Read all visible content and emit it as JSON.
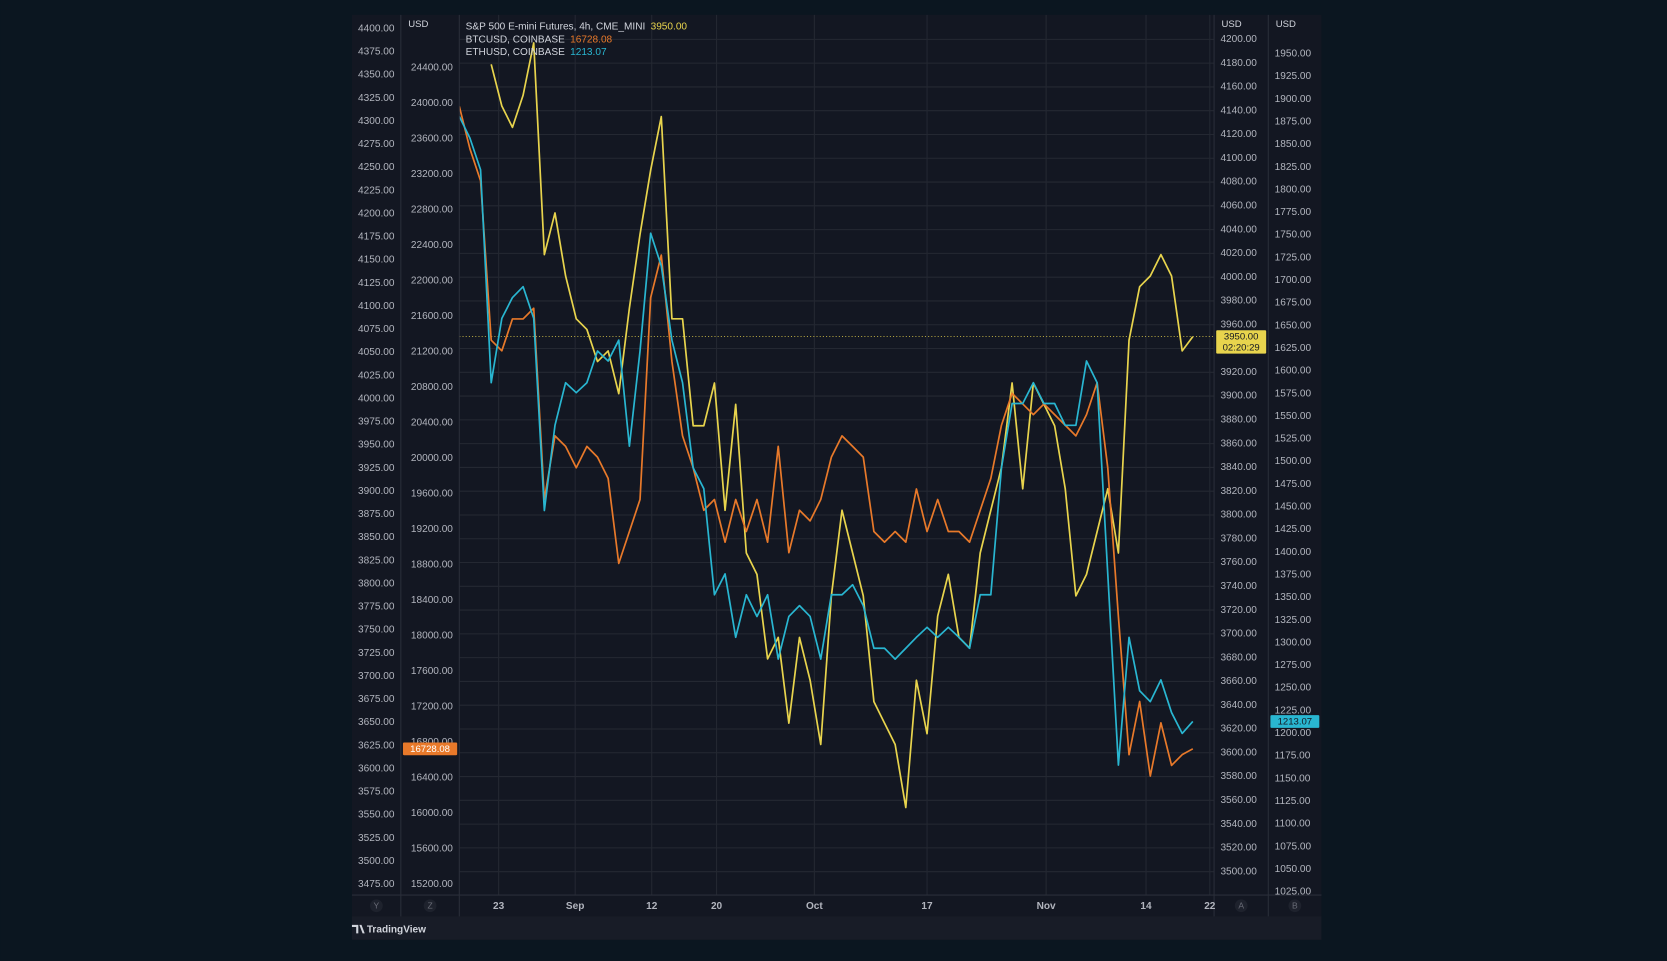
{
  "chart_data": {
    "type": "line",
    "source": "TradingView",
    "xlim": [
      0,
      71
    ],
    "xticks": [
      {
        "value": 3.7,
        "label": "23"
      },
      {
        "value": 10.9,
        "label": "Sep"
      },
      {
        "value": 18.1,
        "label": "12"
      },
      {
        "value": 24.2,
        "label": "20"
      },
      {
        "value": 33.4,
        "label": "Oct"
      },
      {
        "value": 44,
        "label": "17"
      },
      {
        "value": 55.2,
        "label": "Nov"
      },
      {
        "value": 64.6,
        "label": "14"
      },
      {
        "value": 70.6,
        "label": "22"
      }
    ],
    "grid": true,
    "axes": [
      {
        "id": "Y",
        "ylim": [
          3463.5,
          4415
        ],
        "ticks": [
          {
            "value": 4400,
            "label": "4400.00"
          },
          {
            "value": 4375,
            "label": "4375.00"
          },
          {
            "value": 4350,
            "label": "4350.00"
          },
          {
            "value": 4325,
            "label": "4325.00"
          },
          {
            "value": 4300,
            "label": "4300.00"
          },
          {
            "value": 4275,
            "label": "4275.00"
          },
          {
            "value": 4250,
            "label": "4250.00"
          },
          {
            "value": 4225,
            "label": "4225.00"
          },
          {
            "value": 4200,
            "label": "4200.00"
          },
          {
            "value": 4175,
            "label": "4175.00"
          },
          {
            "value": 4150,
            "label": "4150.00"
          },
          {
            "value": 4125,
            "label": "4125.00"
          },
          {
            "value": 4100,
            "label": "4100.00"
          },
          {
            "value": 4075,
            "label": "4075.00"
          },
          {
            "value": 4050,
            "label": "4050.00"
          },
          {
            "value": 4025,
            "label": "4025.00"
          },
          {
            "value": 4000,
            "label": "4000.00"
          },
          {
            "value": 3975,
            "label": "3975.00"
          },
          {
            "value": 3950,
            "label": "3950.00"
          },
          {
            "value": 3925,
            "label": "3925.00"
          },
          {
            "value": 3900,
            "label": "3900.00"
          },
          {
            "value": 3875,
            "label": "3875.00"
          },
          {
            "value": 3850,
            "label": "3850.00"
          },
          {
            "value": 3825,
            "label": "3825.00"
          },
          {
            "value": 3800,
            "label": "3800.00"
          },
          {
            "value": 3775,
            "label": "3775.00"
          },
          {
            "value": 3750,
            "label": "3750.00"
          },
          {
            "value": 3725,
            "label": "3725.00"
          },
          {
            "value": 3700,
            "label": "3700.00"
          },
          {
            "value": 3675,
            "label": "3675.00"
          },
          {
            "value": 3650,
            "label": "3650.00"
          },
          {
            "value": 3625,
            "label": "3625.00"
          },
          {
            "value": 3600,
            "label": "3600.00"
          },
          {
            "value": 3575,
            "label": "3575.00"
          },
          {
            "value": 3550,
            "label": "3550.00"
          },
          {
            "value": 3525,
            "label": "3525.00"
          },
          {
            "value": 3500,
            "label": "3500.00"
          },
          {
            "value": 3475,
            "label": "3475.00"
          }
        ]
      },
      {
        "id": "Z",
        "unit": "USD",
        "ylim": [
          15080,
          24999
        ],
        "ticks": [
          {
            "value": 24400,
            "label": "24400.00"
          },
          {
            "value": 24000,
            "label": "24000.00"
          },
          {
            "value": 23600,
            "label": "23600.00"
          },
          {
            "value": 23200,
            "label": "23200.00"
          },
          {
            "value": 22800,
            "label": "22800.00"
          },
          {
            "value": 22400,
            "label": "22400.00"
          },
          {
            "value": 22000,
            "label": "22000.00"
          },
          {
            "value": 21600,
            "label": "21600.00"
          },
          {
            "value": 21200,
            "label": "21200.00"
          },
          {
            "value": 20800,
            "label": "20800.00"
          },
          {
            "value": 20400,
            "label": "20400.00"
          },
          {
            "value": 20000,
            "label": "20000.00"
          },
          {
            "value": 19600,
            "label": "19600.00"
          },
          {
            "value": 19200,
            "label": "19200.00"
          },
          {
            "value": 18800,
            "label": "18800.00"
          },
          {
            "value": 18400,
            "label": "18400.00"
          },
          {
            "value": 18000,
            "label": "18000.00"
          },
          {
            "value": 17600,
            "label": "17600.00"
          },
          {
            "value": 17200,
            "label": "17200.00"
          },
          {
            "value": 16800,
            "label": "16800.00"
          },
          {
            "value": 16400,
            "label": "16400.00"
          },
          {
            "value": 16000,
            "label": "16000.00"
          },
          {
            "value": 15600,
            "label": "15600.00"
          },
          {
            "value": 15200,
            "label": "15200.00"
          }
        ]
      },
      {
        "id": "A",
        "unit": "USD",
        "ylim": [
          3480.3,
          4220.6
        ],
        "ticks": [
          {
            "value": 4200,
            "label": "4200.00"
          },
          {
            "value": 4180,
            "label": "4180.00"
          },
          {
            "value": 4160,
            "label": "4160.00"
          },
          {
            "value": 4140,
            "label": "4140.00"
          },
          {
            "value": 4120,
            "label": "4120.00"
          },
          {
            "value": 4100,
            "label": "4100.00"
          },
          {
            "value": 4080,
            "label": "4080.00"
          },
          {
            "value": 4060,
            "label": "4060.00"
          },
          {
            "value": 4040,
            "label": "4040.00"
          },
          {
            "value": 4020,
            "label": "4020.00"
          },
          {
            "value": 4000,
            "label": "4000.00"
          },
          {
            "value": 3980,
            "label": "3980.00"
          },
          {
            "value": 3960,
            "label": "3960.00"
          },
          {
            "value": 3940,
            "label": "3940.00"
          },
          {
            "value": 3920,
            "label": "3920.00"
          },
          {
            "value": 3900,
            "label": "3900.00"
          },
          {
            "value": 3880,
            "label": "3880.00"
          },
          {
            "value": 3860,
            "label": "3860.00"
          },
          {
            "value": 3840,
            "label": "3840.00"
          },
          {
            "value": 3820,
            "label": "3820.00"
          },
          {
            "value": 3800,
            "label": "3800.00"
          },
          {
            "value": 3780,
            "label": "3780.00"
          },
          {
            "value": 3760,
            "label": "3760.00"
          },
          {
            "value": 3740,
            "label": "3740.00"
          },
          {
            "value": 3720,
            "label": "3720.00"
          },
          {
            "value": 3700,
            "label": "3700.00"
          },
          {
            "value": 3680,
            "label": "3680.00"
          },
          {
            "value": 3660,
            "label": "3660.00"
          },
          {
            "value": 3640,
            "label": "3640.00"
          },
          {
            "value": 3620,
            "label": "3620.00"
          },
          {
            "value": 3600,
            "label": "3600.00"
          },
          {
            "value": 3580,
            "label": "3580.00"
          },
          {
            "value": 3560,
            "label": "3560.00"
          },
          {
            "value": 3540,
            "label": "3540.00"
          },
          {
            "value": 3520,
            "label": "3520.00"
          },
          {
            "value": 3500,
            "label": "3500.00"
          }
        ]
      },
      {
        "id": "B",
        "unit": "USD",
        "ylim": [
          1021.5,
          1993
        ],
        "ticks": [
          {
            "value": 1950,
            "label": "1950.00"
          },
          {
            "value": 1925,
            "label": "1925.00"
          },
          {
            "value": 1900,
            "label": "1900.00"
          },
          {
            "value": 1875,
            "label": "1875.00"
          },
          {
            "value": 1850,
            "label": "1850.00"
          },
          {
            "value": 1825,
            "label": "1825.00"
          },
          {
            "value": 1800,
            "label": "1800.00"
          },
          {
            "value": 1775,
            "label": "1775.00"
          },
          {
            "value": 1750,
            "label": "1750.00"
          },
          {
            "value": 1725,
            "label": "1725.00"
          },
          {
            "value": 1700,
            "label": "1700.00"
          },
          {
            "value": 1675,
            "label": "1675.00"
          },
          {
            "value": 1650,
            "label": "1650.00"
          },
          {
            "value": 1625,
            "label": "1625.00"
          },
          {
            "value": 1600,
            "label": "1600.00"
          },
          {
            "value": 1575,
            "label": "1575.00"
          },
          {
            "value": 1550,
            "label": "1550.00"
          },
          {
            "value": 1525,
            "label": "1525.00"
          },
          {
            "value": 1500,
            "label": "1500.00"
          },
          {
            "value": 1475,
            "label": "1475.00"
          },
          {
            "value": 1450,
            "label": "1450.00"
          },
          {
            "value": 1425,
            "label": "1425.00"
          },
          {
            "value": 1400,
            "label": "1400.00"
          },
          {
            "value": 1375,
            "label": "1375.00"
          },
          {
            "value": 1350,
            "label": "1350.00"
          },
          {
            "value": 1325,
            "label": "1325.00"
          },
          {
            "value": 1300,
            "label": "1300.00"
          },
          {
            "value": 1275,
            "label": "1275.00"
          },
          {
            "value": 1250,
            "label": "1250.00"
          },
          {
            "value": 1225,
            "label": "1225.00"
          },
          {
            "value": 1200,
            "label": "1200.00"
          },
          {
            "value": 1175,
            "label": "1175.00"
          },
          {
            "value": 1150,
            "label": "1150.00"
          },
          {
            "value": 1125,
            "label": "1125.00"
          },
          {
            "value": 1100,
            "label": "1100.00"
          },
          {
            "value": 1075,
            "label": "1075.00"
          },
          {
            "value": 1050,
            "label": "1050.00"
          },
          {
            "value": 1025,
            "label": "1025.00"
          }
        ]
      }
    ],
    "series": [
      {
        "name": "S&P 500 E-mini Futures, 4h, CME_MINI",
        "legend_value": "3950.00",
        "countdown": "02:20:29",
        "axis": "A",
        "color": "#e8d44d",
        "price_line": true,
        "values": [
          null,
          null,
          null,
          4179,
          4144,
          4126,
          4153,
          4197,
          4019,
          4054,
          4001,
          3965,
          3956,
          3929,
          3938,
          3902,
          3974,
          4036,
          4090,
          4135,
          3965,
          3965,
          3875,
          3875,
          3911,
          3804,
          3893,
          3768,
          3750,
          3679,
          3697,
          3625,
          3697,
          3661,
          3607,
          3732,
          3804,
          3768,
          3732,
          3643,
          3625,
          3607,
          3554,
          3661,
          3616,
          3715,
          3750,
          3697,
          3688,
          3768,
          3804,
          3840,
          3911,
          3822,
          3911,
          3893,
          3875,
          3822,
          3732,
          3750,
          3786,
          3822,
          3768,
          3947,
          3992,
          4001,
          4019,
          4001,
          3938,
          3950
        ]
      },
      {
        "name": "BTCUSD, COINBASE",
        "legend_value": "16728.08",
        "axis": "Z",
        "color": "#e8792a",
        "values": [
          23969,
          23490,
          23130,
          21333,
          21214,
          21573,
          21573,
          21693,
          19537,
          20255,
          20136,
          19896,
          20136,
          20016,
          19776,
          18818,
          19177,
          19537,
          21813,
          22292,
          21094,
          20255,
          19896,
          19417,
          19537,
          19057,
          19537,
          19177,
          19537,
          19057,
          20136,
          18938,
          19417,
          19297,
          19537,
          20016,
          20255,
          20136,
          20016,
          19177,
          19057,
          19177,
          19057,
          19656,
          19177,
          19537,
          19177,
          19177,
          19057,
          19417,
          19776,
          20375,
          20734,
          20615,
          20495,
          20615,
          20495,
          20375,
          20255,
          20495,
          20854,
          19896,
          18219,
          16662,
          17261,
          16422,
          17021,
          16542,
          16662,
          16728.08
        ]
      },
      {
        "name": "ETHUSD, COINBASE",
        "legend_value": "1213.07",
        "axis": "B",
        "color": "#29b6d1",
        "values": [
          1881,
          1857,
          1822,
          1587,
          1658,
          1681,
          1693,
          1658,
          1446,
          1540,
          1587,
          1576,
          1587,
          1622,
          1611,
          1634,
          1517,
          1622,
          1752,
          1716,
          1634,
          1587,
          1493,
          1470,
          1353,
          1376,
          1306,
          1353,
          1329,
          1353,
          1282,
          1329,
          1341,
          1329,
          1282,
          1353,
          1353,
          1364,
          1341,
          1294,
          1294,
          1282,
          1294,
          1306,
          1317,
          1306,
          1317,
          1306,
          1294,
          1353,
          1353,
          1493,
          1564,
          1564,
          1587,
          1564,
          1564,
          1540,
          1540,
          1611,
          1587,
          1376,
          1165,
          1306,
          1247,
          1235,
          1259,
          1223,
          1200,
          1213.07
        ]
      }
    ]
  }
}
